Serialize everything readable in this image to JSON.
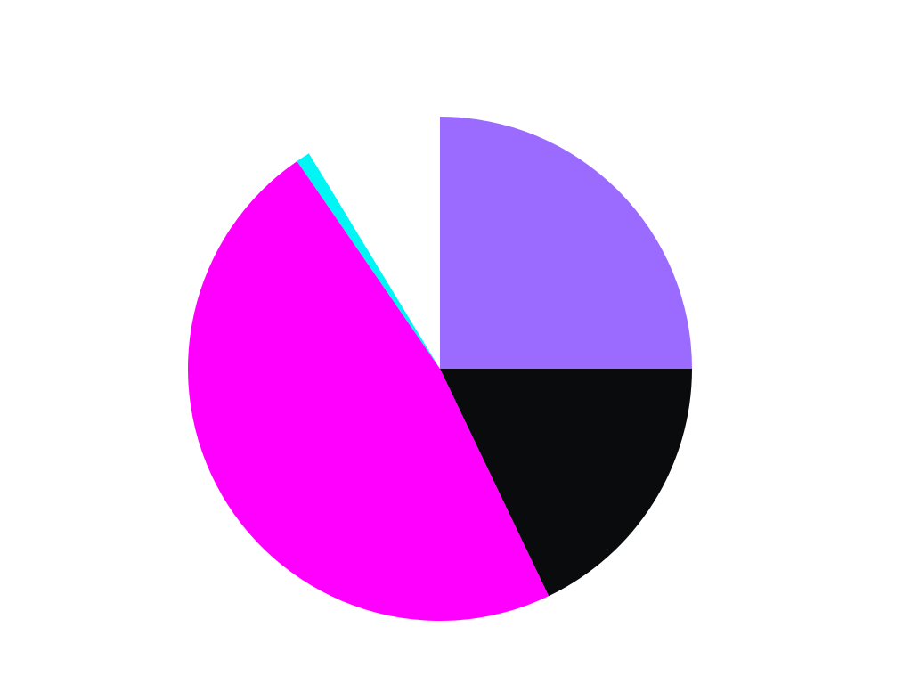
{
  "chart_data": {
    "type": "pie",
    "start_angle": "12 o'clock",
    "direction": "clockwise",
    "slices": [
      {
        "value": 25.0,
        "color": "#9b6bff"
      },
      {
        "value": 17.9,
        "color": "#0a0b0c"
      },
      {
        "value": 47.5,
        "color": "#ff00ff"
      },
      {
        "value": 0.9,
        "color": "#00f5f5"
      },
      {
        "value": 8.7,
        "color": "#ffffff"
      }
    ],
    "legend": "none",
    "title": "",
    "data_labels": "none"
  }
}
